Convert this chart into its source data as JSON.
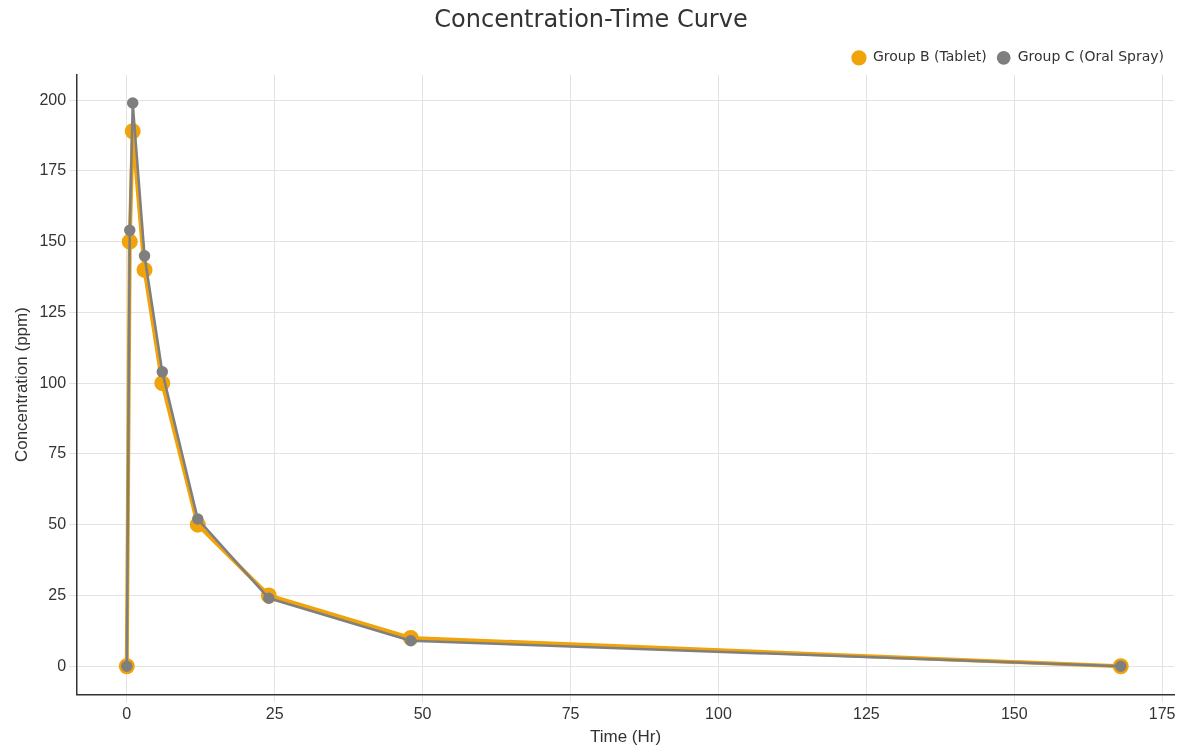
{
  "chart_data": {
    "type": "line",
    "title": "Concentration-Time Curve",
    "xlabel": "Time (Hr)",
    "ylabel": "Concentration (ppm)",
    "x": [
      0,
      0.5,
      1,
      3,
      6,
      12,
      24,
      48,
      168
    ],
    "series": [
      {
        "name": "Group B (Tablet)",
        "color": "#f0a30a",
        "values": [
          0,
          150,
          189,
          140,
          100,
          50,
          25,
          10,
          0
        ]
      },
      {
        "name": "Group C (Oral Spray)",
        "color": "#7f7f7f",
        "values": [
          0,
          154,
          199,
          145,
          104,
          52,
          24,
          9,
          0
        ]
      }
    ],
    "xlim": [
      -8.4,
      177
    ],
    "xticks": [
      0,
      25,
      50,
      75,
      100,
      125,
      150,
      175
    ],
    "ylim": [
      -9.95,
      208.95
    ],
    "yticks": [
      0,
      25,
      50,
      75,
      100,
      125,
      150,
      175,
      200
    ],
    "grid": true,
    "legend": "top right",
    "marker": "circle",
    "line_style": "solid"
  }
}
